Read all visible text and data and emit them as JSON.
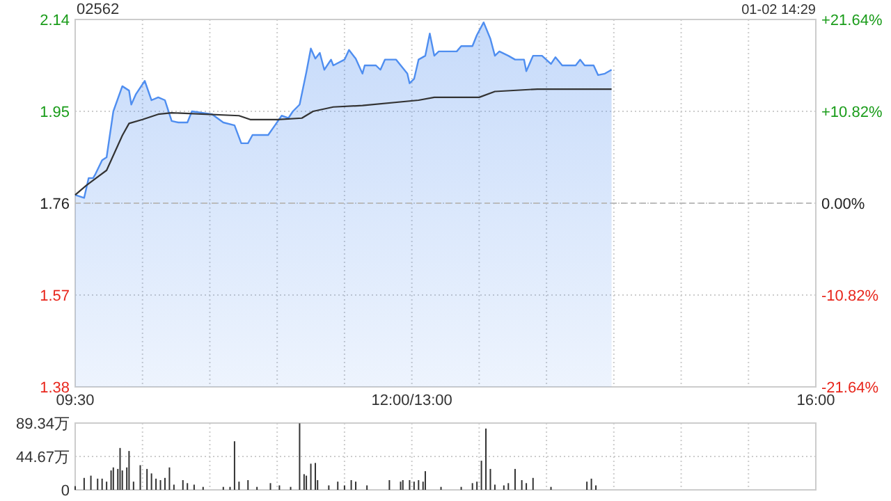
{
  "chart_data": [
    {
      "type": "area",
      "title": "02562",
      "subtitle": "01-02 14:29",
      "categories": [
        "09:30",
        null,
        null,
        null,
        null,
        null,
        null,
        null,
        null,
        null,
        null,
        null,
        null,
        null,
        null,
        null,
        null,
        null,
        null,
        null,
        null,
        null,
        null,
        null,
        null,
        null,
        null,
        null,
        null,
        null,
        null,
        null,
        null,
        null,
        null,
        null,
        null,
        null,
        null,
        null,
        null,
        null,
        null,
        null,
        null,
        null,
        null,
        null,
        null,
        null,
        null,
        null,
        null,
        null,
        null,
        null,
        null,
        null,
        null,
        null,
        null,
        null,
        null,
        null,
        null,
        null,
        null,
        null,
        null,
        null,
        null,
        null,
        null,
        null,
        null,
        null,
        null,
        null,
        null,
        null,
        null,
        null,
        null,
        null,
        null,
        null,
        null,
        null,
        null,
        null,
        null,
        null,
        null,
        null,
        null,
        null,
        null,
        null,
        null,
        null,
        null,
        null,
        null,
        null,
        null,
        null,
        null,
        null,
        null,
        null,
        null,
        null,
        null,
        null,
        null,
        null,
        null,
        null,
        null,
        null,
        null,
        null,
        null,
        null,
        null,
        null,
        null,
        null,
        null,
        null,
        null,
        null,
        null,
        null,
        null,
        null,
        null,
        null,
        null,
        null,
        null,
        null,
        null,
        null,
        null,
        null,
        null,
        null,
        null,
        null,
        "12:00/13:00",
        null,
        null,
        null,
        null,
        null,
        null,
        null,
        null,
        null,
        null,
        null,
        null,
        null,
        null,
        null,
        null,
        null,
        null,
        null,
        null,
        null,
        null,
        null,
        null,
        null,
        null,
        null,
        null,
        null,
        null,
        null,
        null,
        null,
        null,
        null,
        null,
        null,
        null,
        null,
        null,
        null,
        null,
        null,
        null,
        null,
        null,
        null,
        null,
        null,
        null,
        null,
        null,
        null,
        null,
        null,
        null,
        null,
        null,
        null,
        null,
        null,
        null,
        null,
        null,
        null,
        null,
        null,
        null,
        null,
        null,
        null,
        null,
        null,
        null,
        null,
        null,
        null,
        null,
        null,
        null,
        null,
        null,
        null,
        null,
        null,
        null,
        null,
        null,
        null,
        null,
        null,
        null,
        null,
        null,
        null,
        null,
        null,
        null,
        null,
        null,
        null,
        null,
        null,
        null,
        null,
        null,
        null,
        null,
        null,
        null,
        null,
        null,
        null,
        null,
        null,
        null,
        null,
        null,
        null,
        null,
        null,
        null,
        null,
        null,
        null,
        null,
        null,
        null,
        null,
        null,
        null,
        null,
        null,
        null,
        null,
        null,
        null,
        null,
        null,
        null,
        null,
        null,
        null,
        null,
        null,
        null,
        null,
        null,
        null,
        null,
        null,
        null,
        null,
        null,
        null,
        null,
        null,
        null,
        null,
        null,
        null,
        null,
        null,
        null,
        null,
        null,
        null,
        null,
        null,
        null,
        null,
        null,
        null,
        null,
        null,
        null,
        null,
        null,
        null,
        "16:00"
      ],
      "ylim": [
        1.38,
        2.14
      ],
      "yticks": [
        1.38,
        1.57,
        1.76,
        1.95,
        2.14
      ],
      "y2lim": [
        -21.64,
        21.64
      ],
      "y2ticks": [
        {
          "value": -21.64,
          "label": "-21.64%"
        },
        {
          "value": -10.82,
          "label": "-10.82%"
        },
        {
          "value": 0,
          "label": "0.00%"
        },
        {
          "value": 10.82,
          "label": "+10.82%"
        },
        {
          "value": 21.64,
          "label": "+21.64%"
        }
      ],
      "grid": true,
      "ref_lines": [
        {
          "axis": "y",
          "value": 1.76,
          "line_style": "dashed"
        }
      ],
      "series": [
        {
          "color": "#4f8ef0",
          "values": [
            1.777,
            null,
            null,
            null,
            1.771,
            null,
            1.812,
            null,
            1.812,
            1.82,
            null,
            null,
            1.849,
            null,
            1.855,
            null,
            null,
            1.95,
            null,
            null,
            null,
            2.002,
            null,
            null,
            1.993,
            1.964,
            null,
            1.985,
            null,
            null,
            null,
            2.013,
            null,
            null,
            1.973,
            null,
            null,
            1.979,
            null,
            null,
            1.973,
            null,
            null,
            1.93,
            null,
            null,
            1.927,
            null,
            null,
            null,
            1.927,
            null,
            1.95,
            null,
            null,
            null,
            null,
            null,
            null,
            null,
            null,
            1.944,
            null,
            null,
            null,
            null,
            1.927,
            null,
            null,
            null,
            null,
            1.921,
            null,
            null,
            1.884,
            null,
            null,
            1.884,
            null,
            1.901,
            null,
            null,
            null,
            null,
            null,
            null,
            1.901,
            null,
            null,
            1.921,
            null,
            null,
            1.941,
            null,
            null,
            1.936,
            null,
            1.95,
            null,
            null,
            1.964,
            null,
            null,
            2.031,
            null,
            2.08,
            null,
            2.059,
            null,
            2.071,
            null,
            2.036,
            null,
            null,
            2.057,
            2.045,
            null,
            null,
            null,
            null,
            2.057,
            null,
            2.077,
            null,
            null,
            2.059,
            null,
            null,
            2.028,
            2.045,
            null,
            null,
            null,
            null,
            2.045,
            null,
            2.036,
            null,
            2.057,
            null,
            null,
            null,
            null,
            2.057,
            null,
            null,
            null,
            null,
            2.028,
            2.008,
            null,
            2.017,
            null,
            2.057,
            null,
            null,
            2.065,
            null,
            2.111,
            null,
            2.065,
            null,
            2.074,
            null,
            null,
            null,
            null,
            null,
            null,
            null,
            2.074,
            null,
            2.085,
            null,
            null,
            null,
            null,
            2.085,
            null,
            2.108,
            null,
            null,
            2.134,
            null,
            null,
            2.1,
            null,
            2.065,
            null,
            2.074,
            null,
            null,
            null,
            2.065,
            null,
            null,
            2.057,
            null,
            null,
            null,
            2.057,
            2.033,
            null,
            null,
            2.065,
            null,
            null,
            null,
            2.065,
            null,
            null,
            null,
            2.048,
            null,
            2.062,
            null,
            null,
            2.045,
            null,
            null,
            null,
            null,
            null,
            2.045,
            null,
            2.057,
            null,
            2.045,
            null,
            null,
            null,
            2.045,
            null,
            2.025,
            null,
            null,
            2.028,
            null,
            null,
            2.036,
            null,
            null,
            null,
            null,
            null,
            null,
            null,
            null,
            null,
            null,
            null,
            null,
            null,
            null,
            null,
            null,
            null,
            null,
            null,
            null,
            null,
            null,
            null,
            null,
            null,
            null,
            null,
            null,
            null,
            null,
            null,
            null,
            null,
            null,
            null,
            null,
            null,
            null,
            null,
            null,
            null,
            null,
            null,
            null,
            null,
            null,
            null,
            null,
            null,
            null,
            null,
            null,
            null,
            null,
            null,
            null,
            null,
            null,
            null,
            null,
            null,
            null,
            null,
            null,
            null,
            null,
            null,
            null,
            null,
            null,
            null,
            null,
            null,
            null,
            null,
            null,
            null,
            null,
            null,
            null,
            null,
            null,
            null,
            null,
            null,
            null,
            null,
            null,
            null,
            null,
            null
          ]
        },
        {
          "type": "line",
          "color": "#333333",
          "values": [
            1.777,
            null,
            null,
            null,
            null,
            1.797,
            null,
            null,
            null,
            null,
            null,
            null,
            null,
            null,
            1.828,
            null,
            null,
            null,
            null,
            null,
            null,
            1.9,
            null,
            null,
            1.925,
            null,
            null,
            null,
            null,
            null,
            1.933,
            null,
            null,
            null,
            null,
            null,
            null,
            1.944,
            null,
            null,
            null,
            null,
            null,
            1.947,
            null,
            null,
            null,
            null,
            null,
            null,
            null,
            null,
            null,
            null,
            null,
            null,
            null,
            null,
            null,
            null,
            null,
            null,
            null,
            null,
            null,
            null,
            null,
            null,
            null,
            null,
            null,
            null,
            null,
            1.941,
            null,
            null,
            null,
            null,
            1.933,
            null,
            null,
            null,
            null,
            null,
            null,
            null,
            null,
            null,
            null,
            null,
            1.933,
            null,
            null,
            null,
            null,
            null,
            null,
            null,
            null,
            null,
            null,
            1.936,
            null,
            null,
            null,
            null,
            1.95,
            null,
            null,
            null,
            null,
            null,
            null,
            null,
            null,
            1.959,
            null,
            null,
            null,
            null,
            null,
            null,
            null,
            null,
            null,
            null,
            null,
            null,
            1.962,
            null,
            null,
            null,
            null,
            null,
            null,
            null,
            null,
            null,
            null,
            null,
            null,
            null,
            null,
            null,
            null,
            null,
            null,
            null,
            null,
            null,
            null,
            null,
            null,
            1.973,
            null,
            null,
            null,
            null,
            null,
            null,
            1.979,
            null,
            null,
            null,
            null,
            null,
            null,
            null,
            null,
            null,
            null,
            null,
            null,
            null,
            null,
            null,
            null,
            null,
            null,
            null,
            1.979,
            null,
            null,
            null,
            null,
            null,
            null,
            1.991,
            null,
            null,
            null,
            null,
            null,
            null,
            null,
            null,
            null,
            null,
            null,
            null,
            null,
            null,
            null,
            null,
            null,
            null,
            1.996,
            null,
            null,
            null,
            null,
            null,
            null,
            null,
            null,
            null,
            null,
            null,
            null,
            null,
            null,
            null,
            null,
            null,
            null,
            null,
            null,
            null,
            null,
            null,
            null,
            null,
            null,
            null,
            null,
            null,
            null,
            null,
            null,
            1.996,
            null,
            null,
            null,
            null,
            null,
            null,
            null,
            null,
            null,
            null,
            null,
            null,
            null,
            null,
            null,
            null,
            null,
            null,
            null,
            null,
            null,
            null,
            null,
            null,
            null,
            null,
            null,
            null,
            null,
            null,
            null,
            null,
            null,
            null,
            null,
            null,
            null,
            null,
            null,
            null,
            null,
            null,
            null,
            null,
            null,
            null,
            null,
            null,
            null,
            null,
            null,
            null,
            null,
            null,
            null,
            null,
            null,
            null,
            null,
            null,
            null,
            null,
            null,
            null,
            null,
            null,
            null,
            null,
            null,
            null,
            null,
            null,
            null,
            null,
            null,
            null,
            null,
            null,
            null,
            null,
            null,
            null,
            null,
            null,
            null,
            null,
            null,
            null,
            null,
            null,
            null
          ]
        }
      ]
    },
    {
      "type": "bar",
      "categories": [
        null,
        null,
        null,
        null,
        null,
        null,
        null,
        null,
        null,
        null,
        null,
        null,
        null,
        null,
        null,
        null,
        null,
        null,
        null,
        null,
        null,
        null,
        null,
        null,
        null,
        null,
        null,
        null,
        null,
        null,
        null,
        null,
        null,
        null,
        null,
        null,
        null,
        null,
        null,
        null,
        null,
        null,
        null,
        null,
        null,
        null,
        null,
        null,
        null,
        null,
        null,
        null,
        null,
        null,
        null,
        null,
        null,
        null,
        null,
        null,
        null,
        null,
        null,
        null,
        null,
        null,
        null,
        null,
        null,
        null,
        null,
        null,
        null,
        null,
        null,
        null,
        null,
        null,
        null,
        null,
        null,
        null,
        null,
        null,
        null,
        null,
        null,
        null,
        null,
        null,
        null,
        null,
        null,
        null,
        null,
        null,
        null,
        null,
        null,
        null,
        null,
        null,
        null,
        null,
        null,
        null,
        null,
        null,
        null,
        null,
        null,
        null,
        null,
        null,
        null,
        null,
        null,
        null,
        null,
        null,
        null,
        null,
        null,
        null,
        null,
        null,
        null,
        null,
        null,
        null,
        null,
        null,
        null,
        null,
        null,
        null,
        null,
        null,
        null,
        null,
        null,
        null,
        null,
        null,
        null,
        null,
        null,
        null,
        null,
        null,
        null,
        null,
        null,
        null,
        null,
        null,
        null,
        null,
        null,
        null,
        null,
        null,
        null,
        null,
        null,
        null,
        null,
        null,
        null,
        null,
        null,
        null,
        null,
        null,
        null,
        null,
        null,
        null,
        null,
        null,
        null,
        null,
        null,
        null,
        null,
        null,
        null,
        null,
        null,
        null,
        null,
        null,
        null,
        null,
        null,
        null,
        null,
        null,
        null,
        null,
        null,
        null,
        null,
        null,
        null,
        null,
        null,
        null,
        null,
        null,
        null,
        null,
        null,
        null,
        null,
        null,
        null,
        null,
        null,
        null,
        null,
        null,
        null,
        null,
        null,
        null,
        null,
        null,
        null,
        null,
        null,
        null,
        null,
        null,
        null,
        null,
        null,
        null,
        null,
        null,
        null,
        null,
        null,
        null,
        null,
        null,
        null,
        null,
        null,
        null,
        null,
        null,
        null,
        null,
        null,
        null,
        null,
        null,
        null,
        null,
        null,
        null,
        null,
        null,
        null,
        null,
        null,
        null,
        null,
        null,
        null,
        null,
        null,
        null,
        null,
        null,
        null,
        null,
        null,
        null,
        null,
        null,
        null,
        null,
        null,
        null,
        null,
        null,
        null,
        null,
        null,
        null,
        null,
        null,
        null,
        null,
        null,
        null,
        null,
        null,
        null,
        null,
        null,
        null,
        null,
        null,
        null,
        null,
        null,
        null,
        null,
        null,
        null,
        null,
        null,
        null,
        null,
        null,
        null,
        null,
        null,
        null,
        null,
        null,
        null,
        null,
        null,
        null,
        null,
        null,
        null
      ],
      "ylim": [
        0,
        89.34
      ],
      "yticks": [
        0,
        {
          "value": 44.67,
          "label": "44.67万"
        },
        {
          "value": 89.34,
          "label": "89.34万"
        }
      ],
      "grid": true,
      "tick_labels": "y",
      "series": [
        {
          "color": "#333333",
          "values": [
            5,
            null,
            null,
            null,
            16,
            null,
            null,
            19,
            null,
            null,
            15,
            null,
            15,
            null,
            11,
            null,
            26,
            30,
            null,
            28,
            56,
            26,
            null,
            30,
            52,
            null,
            11,
            null,
            null,
            33,
            null,
            null,
            28,
            null,
            22,
            null,
            15,
            null,
            13,
            null,
            16,
            null,
            30,
            null,
            7,
            null,
            null,
            null,
            13,
            null,
            9,
            null,
            null,
            7,
            null,
            null,
            null,
            4,
            null,
            null,
            null,
            null,
            null,
            null,
            null,
            null,
            4,
            null,
            null,
            4,
            null,
            65,
            null,
            11,
            null,
            null,
            null,
            13,
            null,
            null,
            null,
            4,
            null,
            null,
            null,
            null,
            null,
            9,
            null,
            null,
            null,
            6,
            null,
            null,
            null,
            null,
            4,
            null,
            null,
            null,
            89,
            null,
            21,
            19,
            null,
            35,
            null,
            36,
            13,
            null,
            null,
            null,
            null,
            6,
            null,
            null,
            null,
            11,
            null,
            null,
            6,
            null,
            null,
            13,
            null,
            11,
            null,
            null,
            null,
            null,
            6,
            null,
            null,
            null,
            null,
            null,
            null,
            null,
            null,
            null,
            13,
            null,
            null,
            null,
            null,
            11,
            13,
            null,
            null,
            13,
            null,
            11,
            null,
            13,
            null,
            11,
            25,
            null,
            null,
            null,
            null,
            null,
            null,
            4,
            null,
            null,
            null,
            null,
            null,
            null,
            null,
            null,
            4,
            null,
            null,
            null,
            null,
            9,
            null,
            11,
            null,
            39,
            null,
            82,
            null,
            28,
            null,
            7,
            null,
            null,
            null,
            6,
            null,
            9,
            null,
            null,
            28,
            null,
            null,
            13,
            null,
            9,
            null,
            null,
            16,
            null,
            null,
            null,
            null,
            null,
            null,
            null,
            4,
            null,
            null,
            null,
            null,
            null,
            null,
            null,
            null,
            null,
            null,
            null,
            null,
            null,
            null,
            null,
            11,
            null,
            15,
            null,
            6,
            null,
            null,
            null,
            null,
            null,
            null,
            null,
            null,
            null,
            null,
            null,
            null,
            null,
            null,
            null,
            null,
            null,
            null,
            null,
            null,
            null,
            null,
            null,
            null,
            null,
            null,
            null,
            null,
            null,
            null,
            null,
            null,
            null,
            null,
            null,
            null,
            null,
            null,
            null,
            null,
            null,
            null,
            null,
            null,
            null,
            null,
            null,
            null,
            null,
            null,
            null,
            null,
            null,
            null,
            null,
            null,
            null,
            null,
            null,
            null,
            null,
            null,
            null,
            null,
            null,
            null,
            null,
            null,
            null,
            null,
            null,
            null,
            null,
            null,
            null,
            null,
            null,
            null,
            null,
            null,
            null,
            null,
            null,
            null,
            null,
            null,
            null,
            null,
            null,
            null,
            null,
            null,
            null,
            null,
            null,
            null,
            null,
            null
          ]
        }
      ]
    }
  ]
}
